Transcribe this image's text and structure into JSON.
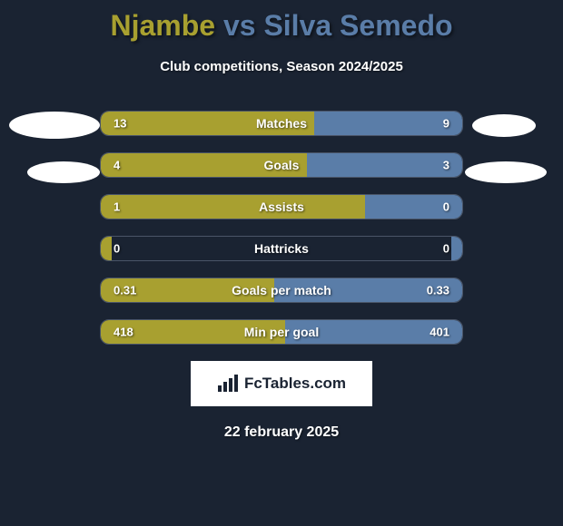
{
  "title": {
    "player1": "Njambe",
    "vs": "vs",
    "player2": "Silva Semedo",
    "player1_color": "#a8a030",
    "player2_color": "#5a7da8"
  },
  "subtitle": "Club competitions, Season 2024/2025",
  "colors": {
    "left_bar": "#a8a030",
    "right_bar": "#5a7da8",
    "background": "#1a2332",
    "border": "#4a5568",
    "text": "#ffffff"
  },
  "stats": [
    {
      "label": "Matches",
      "left_value": "13",
      "right_value": "9",
      "left_pct": 59,
      "right_pct": 41
    },
    {
      "label": "Goals",
      "left_value": "4",
      "right_value": "3",
      "left_pct": 57,
      "right_pct": 43
    },
    {
      "label": "Assists",
      "left_value": "1",
      "right_value": "0",
      "left_pct": 73,
      "right_pct": 27
    },
    {
      "label": "Hattricks",
      "left_value": "0",
      "right_value": "0",
      "left_pct": 3,
      "right_pct": 3
    },
    {
      "label": "Goals per match",
      "left_value": "0.31",
      "right_value": "0.33",
      "left_pct": 48,
      "right_pct": 52
    },
    {
      "label": "Min per goal",
      "left_value": "418",
      "right_value": "401",
      "left_pct": 51,
      "right_pct": 49
    }
  ],
  "logo": {
    "text": "FcTables.com"
  },
  "date": "22 february 2025"
}
